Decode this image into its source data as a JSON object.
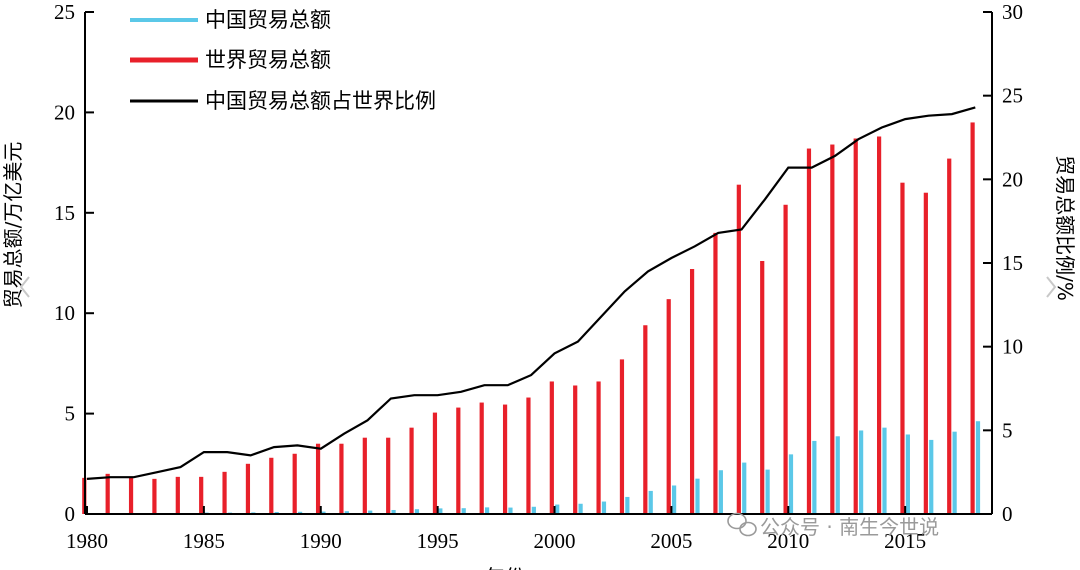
{
  "chart_data": {
    "type": "bar+line",
    "x_ticks": [
      "1980",
      "1985",
      "1990",
      "1995",
      "2000",
      "2005",
      "2010",
      "2015"
    ],
    "x_label": "年份",
    "y_left": {
      "label": "贸易总额/万亿美元",
      "ylim": [
        0,
        25
      ],
      "ticks": [
        "0",
        "5",
        "10",
        "15",
        "20",
        "25"
      ]
    },
    "y_right": {
      "label": "贸易总额比例/%",
      "ylim": [
        0,
        30
      ],
      "ticks": [
        "0",
        "5",
        "10",
        "15",
        "20",
        "25",
        "30"
      ]
    },
    "years": [
      1980,
      1981,
      1982,
      1983,
      1984,
      1985,
      1986,
      1987,
      1988,
      1989,
      1990,
      1991,
      1992,
      1993,
      1994,
      1995,
      1996,
      1997,
      1998,
      1999,
      2000,
      2001,
      2002,
      2003,
      2004,
      2005,
      2006,
      2007,
      2008,
      2009,
      2010,
      2011,
      2012,
      2013,
      2014,
      2015,
      2016,
      2017,
      2018
    ],
    "series": [
      {
        "name": "中国贸易总额",
        "kind": "bar",
        "axis": "left",
        "color": "#5bc8e8",
        "values": [
          0.04,
          0.04,
          0.04,
          0.04,
          0.05,
          0.07,
          0.07,
          0.08,
          0.1,
          0.11,
          0.12,
          0.14,
          0.17,
          0.2,
          0.24,
          0.28,
          0.29,
          0.33,
          0.32,
          0.36,
          0.47,
          0.51,
          0.62,
          0.85,
          1.15,
          1.42,
          1.76,
          2.18,
          2.56,
          2.21,
          2.97,
          3.64,
          3.87,
          4.16,
          4.3,
          3.96,
          3.69,
          4.1,
          4.62
        ]
      },
      {
        "name": "世界贸易总额",
        "kind": "bar",
        "axis": "left",
        "color": "#e8202a",
        "values": [
          1.8,
          2.0,
          1.85,
          1.75,
          1.85,
          1.85,
          2.1,
          2.5,
          2.8,
          3.0,
          3.5,
          3.5,
          3.8,
          3.8,
          4.3,
          5.05,
          5.3,
          5.55,
          5.45,
          5.8,
          6.6,
          6.4,
          6.6,
          7.7,
          9.4,
          10.7,
          12.2,
          14.0,
          16.4,
          12.6,
          15.4,
          18.2,
          18.4,
          18.7,
          18.8,
          16.5,
          16.0,
          17.7,
          19.5
        ]
      },
      {
        "name": "中国贸易总额占世界比例",
        "kind": "line",
        "axis": "right",
        "color": "#000000",
        "values": [
          2.1,
          2.2,
          2.2,
          2.5,
          2.8,
          3.7,
          3.7,
          3.5,
          4.0,
          4.1,
          3.9,
          4.8,
          5.6,
          6.9,
          7.1,
          7.1,
          7.3,
          7.7,
          7.7,
          8.3,
          9.6,
          10.3,
          11.8,
          13.3,
          14.5,
          15.3,
          16.0,
          16.8,
          17.0,
          18.8,
          20.7,
          20.7,
          21.4,
          22.4,
          23.1,
          23.6,
          23.8,
          23.9,
          24.3
        ]
      }
    ],
    "legend_position": "top-left"
  },
  "watermark": {
    "text": "公众号 · 南生今世说",
    "icon": "wechat-icon"
  },
  "nav": {
    "left_icon": "chevron-left-icon",
    "right_icon": "chevron-right-icon"
  }
}
